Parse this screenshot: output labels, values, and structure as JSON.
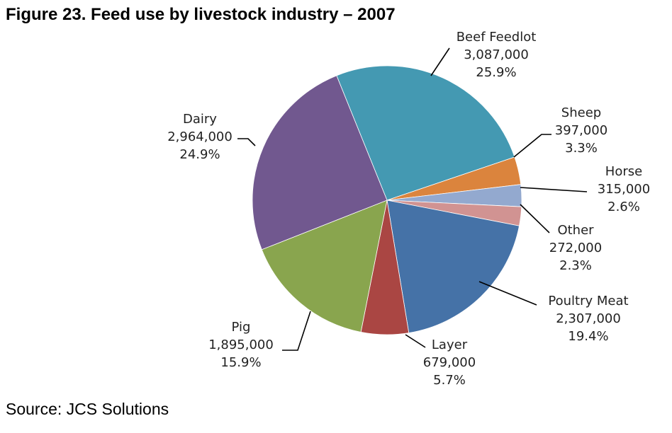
{
  "chart_data": {
    "type": "pie",
    "title": "Figure 23.  Feed use by livestock industry – 2007",
    "source": "Source: JCS Solutions",
    "start_angle_deg": -22,
    "slices": [
      {
        "name": "Beef Feedlot",
        "value_label": "3,087,000",
        "percent_label": "25.9%",
        "value": 3087000,
        "percent": 25.9,
        "color": "#4499B2"
      },
      {
        "name": "Sheep",
        "value_label": "397,000",
        "percent_label": "3.3%",
        "value": 397000,
        "percent": 3.3,
        "color": "#DB843D"
      },
      {
        "name": "Horse",
        "value_label": "315,000",
        "percent_label": "2.6%",
        "value": 315000,
        "percent": 2.6,
        "color": "#93A9CF"
      },
      {
        "name": "Other",
        "value_label": "272,000",
        "percent_label": "2.3%",
        "value": 272000,
        "percent": 2.3,
        "color": "#D19392"
      },
      {
        "name": "Poultry Meat",
        "value_label": "2,307,000",
        "percent_label": "19.4%",
        "value": 2307000,
        "percent": 19.4,
        "color": "#4572A7"
      },
      {
        "name": "Layer",
        "value_label": "679,000",
        "percent_label": "5.7%",
        "value": 679000,
        "percent": 5.7,
        "color": "#AA4643"
      },
      {
        "name": "Pig",
        "value_label": "1,895,000",
        "percent_label": "15.9%",
        "value": 1895000,
        "percent": 15.9,
        "color": "#89A54E"
      },
      {
        "name": "Dairy",
        "value_label": "2,964,000",
        "percent_label": "24.9%",
        "value": 2964000,
        "percent": 24.9,
        "color": "#71588F"
      }
    ]
  }
}
